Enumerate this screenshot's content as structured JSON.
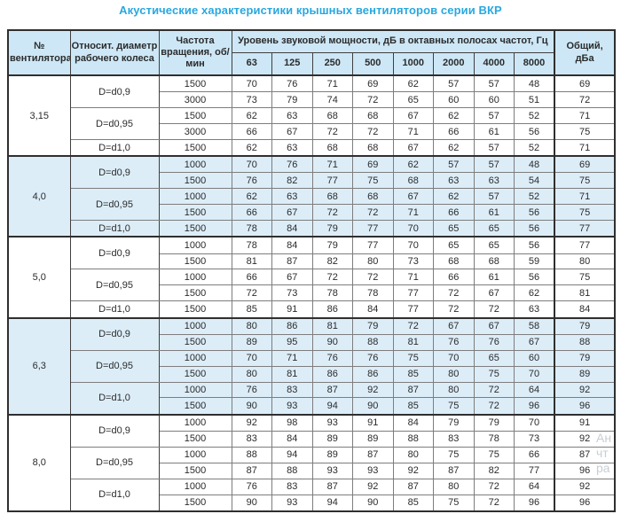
{
  "title": "Акустические характеристики крышных вентиляторов серии ВКР",
  "colors": {
    "title_accent": "#29a8df",
    "header_bg": "#cde7f6",
    "shaded_row_bg": "#dcedf8"
  },
  "watermark": {
    "lines": [
      "Ан",
      "чт",
      "ра"
    ]
  },
  "table": {
    "headers": {
      "fan_number": "№ вентилятора",
      "diameter": "Относит. диаметр рабочего колеса",
      "rpm": "Частота вращения, об/мин",
      "spl_group": "Уровень звуковой мощности, дБ в октавных полосах частот, Гц",
      "frequencies": [
        "63",
        "125",
        "250",
        "500",
        "1000",
        "2000",
        "4000",
        "8000"
      ],
      "total": "Общий, дБа"
    },
    "sections": [
      {
        "fan": "3,15",
        "shaded": false,
        "groups": [
          {
            "diameter": "D=d0,9",
            "rows": [
              {
                "rpm": "1500",
                "values": [
                  "70",
                  "76",
                  "71",
                  "69",
                  "62",
                  "57",
                  "57",
                  "48"
                ],
                "total": "69"
              },
              {
                "rpm": "3000",
                "values": [
                  "73",
                  "79",
                  "74",
                  "72",
                  "65",
                  "60",
                  "60",
                  "51"
                ],
                "total": "72"
              }
            ]
          },
          {
            "diameter": "D=d0,95",
            "rows": [
              {
                "rpm": "1500",
                "values": [
                  "62",
                  "63",
                  "68",
                  "68",
                  "67",
                  "62",
                  "57",
                  "52"
                ],
                "total": "71"
              },
              {
                "rpm": "3000",
                "values": [
                  "66",
                  "67",
                  "72",
                  "72",
                  "71",
                  "66",
                  "61",
                  "56"
                ],
                "total": "75"
              }
            ]
          },
          {
            "diameter": "D=d1,0",
            "rows": [
              {
                "rpm": "1500",
                "values": [
                  "62",
                  "63",
                  "68",
                  "68",
                  "67",
                  "62",
                  "57",
                  "52"
                ],
                "total": "71"
              }
            ]
          }
        ]
      },
      {
        "fan": "4,0",
        "shaded": true,
        "groups": [
          {
            "diameter": "D=d0,9",
            "rows": [
              {
                "rpm": "1000",
                "values": [
                  "70",
                  "76",
                  "71",
                  "69",
                  "62",
                  "57",
                  "57",
                  "48"
                ],
                "total": "69"
              },
              {
                "rpm": "1500",
                "values": [
                  "76",
                  "82",
                  "77",
                  "75",
                  "68",
                  "63",
                  "63",
                  "54"
                ],
                "total": "75"
              }
            ]
          },
          {
            "diameter": "D=d0,95",
            "rows": [
              {
                "rpm": "1000",
                "values": [
                  "62",
                  "63",
                  "68",
                  "68",
                  "67",
                  "62",
                  "57",
                  "52"
                ],
                "total": "71"
              },
              {
                "rpm": "1500",
                "values": [
                  "66",
                  "67",
                  "72",
                  "72",
                  "71",
                  "66",
                  "61",
                  "56"
                ],
                "total": "75"
              }
            ]
          },
          {
            "diameter": "D=d1,0",
            "rows": [
              {
                "rpm": "1500",
                "values": [
                  "78",
                  "84",
                  "79",
                  "77",
                  "70",
                  "65",
                  "65",
                  "56"
                ],
                "total": "77"
              }
            ]
          }
        ]
      },
      {
        "fan": "5,0",
        "shaded": false,
        "groups": [
          {
            "diameter": "D=d0,9",
            "rows": [
              {
                "rpm": "1000",
                "values": [
                  "78",
                  "84",
                  "79",
                  "77",
                  "70",
                  "65",
                  "65",
                  "56"
                ],
                "total": "77"
              },
              {
                "rpm": "1500",
                "values": [
                  "81",
                  "87",
                  "82",
                  "80",
                  "73",
                  "68",
                  "68",
                  "59"
                ],
                "total": "80"
              }
            ]
          },
          {
            "diameter": "D=d0,95",
            "rows": [
              {
                "rpm": "1000",
                "values": [
                  "66",
                  "67",
                  "72",
                  "72",
                  "71",
                  "66",
                  "61",
                  "56"
                ],
                "total": "75"
              },
              {
                "rpm": "1500",
                "values": [
                  "72",
                  "73",
                  "78",
                  "78",
                  "77",
                  "72",
                  "67",
                  "62"
                ],
                "total": "81"
              }
            ]
          },
          {
            "diameter": "D=d1,0",
            "rows": [
              {
                "rpm": "1500",
                "values": [
                  "85",
                  "91",
                  "86",
                  "84",
                  "77",
                  "72",
                  "72",
                  "63"
                ],
                "total": "84"
              }
            ]
          }
        ]
      },
      {
        "fan": "6,3",
        "shaded": true,
        "groups": [
          {
            "diameter": "D=d0,9",
            "rows": [
              {
                "rpm": "1000",
                "values": [
                  "80",
                  "86",
                  "81",
                  "79",
                  "72",
                  "67",
                  "67",
                  "58"
                ],
                "total": "79"
              },
              {
                "rpm": "1500",
                "values": [
                  "89",
                  "95",
                  "90",
                  "88",
                  "81",
                  "76",
                  "76",
                  "67"
                ],
                "total": "88"
              }
            ]
          },
          {
            "diameter": "D=d0,95",
            "rows": [
              {
                "rpm": "1000",
                "values": [
                  "70",
                  "71",
                  "76",
                  "76",
                  "75",
                  "70",
                  "65",
                  "60"
                ],
                "total": "79"
              },
              {
                "rpm": "1500",
                "values": [
                  "80",
                  "81",
                  "86",
                  "86",
                  "85",
                  "80",
                  "75",
                  "70"
                ],
                "total": "89"
              }
            ]
          },
          {
            "diameter": "D=d1,0",
            "rows": [
              {
                "rpm": "1000",
                "values": [
                  "76",
                  "83",
                  "87",
                  "92",
                  "87",
                  "80",
                  "72",
                  "64"
                ],
                "total": "92"
              },
              {
                "rpm": "1500",
                "values": [
                  "90",
                  "93",
                  "94",
                  "90",
                  "85",
                  "75",
                  "72",
                  "96"
                ],
                "total": "96"
              }
            ]
          }
        ]
      },
      {
        "fan": "8,0",
        "shaded": false,
        "groups": [
          {
            "diameter": "D=d0,9",
            "rows": [
              {
                "rpm": "1000",
                "values": [
                  "92",
                  "98",
                  "93",
                  "91",
                  "84",
                  "79",
                  "79",
                  "70"
                ],
                "total": "91"
              },
              {
                "rpm": "1500",
                "values": [
                  "83",
                  "84",
                  "89",
                  "89",
                  "88",
                  "83",
                  "78",
                  "73"
                ],
                "total": "92"
              }
            ]
          },
          {
            "diameter": "D=d0,95",
            "rows": [
              {
                "rpm": "1000",
                "values": [
                  "88",
                  "94",
                  "89",
                  "87",
                  "80",
                  "75",
                  "75",
                  "66"
                ],
                "total": "87"
              },
              {
                "rpm": "1500",
                "values": [
                  "87",
                  "88",
                  "93",
                  "93",
                  "92",
                  "87",
                  "82",
                  "77"
                ],
                "total": "96"
              }
            ]
          },
          {
            "diameter": "D=d1,0",
            "rows": [
              {
                "rpm": "1000",
                "values": [
                  "76",
                  "83",
                  "87",
                  "92",
                  "87",
                  "80",
                  "72",
                  "64"
                ],
                "total": "92"
              },
              {
                "rpm": "1500",
                "values": [
                  "90",
                  "93",
                  "94",
                  "90",
                  "85",
                  "75",
                  "72",
                  "96"
                ],
                "total": "96"
              }
            ]
          }
        ]
      }
    ]
  }
}
